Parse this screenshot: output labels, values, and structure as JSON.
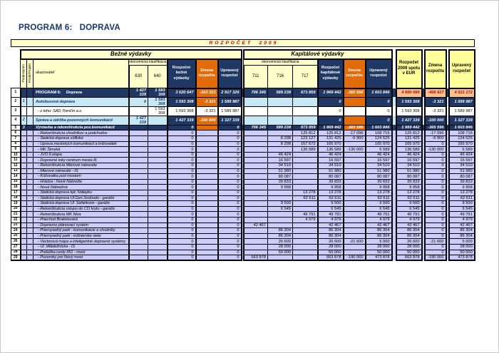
{
  "title": "PROGRAM 6:   DOPRAVA",
  "banner": "R O Z P O Č E T     2 0 0 9",
  "header": {
    "bezne": "Bežné výdavky",
    "kapitalove": "Kapitálové výdavky",
    "ekonomicka": "ekonomická klasifikácia",
    "podprogram": "Podprogram",
    "prvok": "Prvok/Projekt",
    "ukazovatel": "ukazovateľ",
    "col630": "630",
    "col640": "640",
    "col711": "711",
    "col716": "716",
    "col717": "717",
    "rozpocet_bezne": "Rozpočet bežné výdavky",
    "zmena": "Zmena rozpočtu",
    "upraveny": "Upravený rozpočet",
    "rozpocet_kapitalove": "Rozpočet kapitálové výdavky",
    "rozpocet_spolu_eur": "Rozpočet 2009 spolu v EUR"
  },
  "colors": {
    "navy": "#1F3864",
    "orange": "#E36C0A",
    "pale_yellow": "#FFFFCC",
    "yellow": "#FFFF99",
    "salmon": "#FAC090",
    "cyan": "#C6E7F4",
    "lavender": "#CCCCFF",
    "dark_red": "#C00000"
  },
  "rows": [
    {
      "num": "1",
      "pod": "",
      "style": "total",
      "name": "PROGRAM 6:     Doprava",
      "cells": [
        "1 427 339",
        "1 593 308",
        "3 020 647",
        "-103 321",
        "2 917 326",
        "706 345",
        "589 238",
        "673 859",
        "1 969 442",
        "-365 596",
        "1 603 846",
        "4 990 089",
        "-468 917",
        "4 521 172"
      ]
    },
    {
      "num": "2",
      "pod": "1",
      "style": "sub",
      "name": "Autobusová doprava",
      "cells": [
        "0",
        "1 593 308",
        "1 593 308",
        "-3 321",
        "1 589 987",
        "",
        "",
        "",
        "0",
        "",
        "0",
        "1 593 308",
        "-3 321",
        "1 589 987"
      ]
    },
    {
      "num": "3",
      "pod": "",
      "style": "plain",
      "name": "- z toho: SAD Trenčín a.s.",
      "cells": [
        "",
        "1 593 308",
        "1 593 308",
        "-3 321",
        "1 589 987",
        "",
        "",
        "",
        "0",
        "",
        "0",
        "1 593 308",
        "-3 321",
        "1 589 987"
      ]
    },
    {
      "num": "4",
      "pod": "2",
      "style": "sub",
      "name": "Správa a údržba pozemných komunikácií",
      "cells": [
        "1 427 339",
        "",
        "1 427 339",
        "-100 000",
        "1 327 339",
        "",
        "",
        "",
        "0",
        "",
        "0",
        "1 427 339",
        "-100 000",
        "1 327 339"
      ]
    },
    {
      "num": "5",
      "pod": "3",
      "style": "total2",
      "name": "Výstavba a rekonštrukcia poz.komunikácií",
      "cells": [
        "",
        "",
        "0",
        "",
        "0",
        "706 345",
        "589 238",
        "673 859",
        "1 969 442",
        "-365 596",
        "1 603 846",
        "1 969 442",
        "-365 596",
        "1 603 846"
      ]
    },
    {
      "num": "6",
      "pod": "",
      "style": "detail",
      "name": "- Rekonštrukcia chodníkov a podchodov",
      "cells": [
        "",
        "",
        "0",
        "",
        "0",
        "",
        "",
        "125 812",
        "125 812",
        "-17 096",
        "108 716",
        "125 812",
        "-17 096",
        "108 716"
      ]
    },
    {
      "num": "7",
      "pod": "",
      "style": "detail",
      "name": "- Statická doprava sídliská",
      "cells": [
        "",
        "",
        "0",
        "",
        "0",
        "",
        "8 298",
        "123 127",
        "131 425",
        "-6 900",
        "124 525",
        "131 425",
        "-6 900",
        "124 525"
      ]
    },
    {
      "num": "8",
      "pod": "",
      "style": "detail",
      "name": "- Úprava mestských komunikácií a križovatiek",
      "cells": [
        "",
        "",
        "0",
        "",
        "0",
        "",
        "8 298",
        "157 672",
        "165 970",
        "",
        "165 970",
        "165 970",
        "0",
        "165 970"
      ]
    },
    {
      "num": "9",
      "pod": "",
      "style": "detail",
      "name": "- MK Šimská",
      "cells": [
        "",
        "",
        "0",
        "",
        "0",
        "",
        "",
        "136 589",
        "136 589",
        "-130 000",
        "6 589",
        "136 589",
        "-130 000",
        "6 589"
      ]
    },
    {
      "num": "10",
      "pod": "",
      "style": "detail",
      "name": "- JVO II.etapa",
      "cells": [
        "",
        "",
        "0",
        "",
        "0",
        "",
        "46 424",
        "",
        "46 424",
        "",
        "46 424",
        "46 424",
        "0",
        "46 424"
      ]
    },
    {
      "num": "11",
      "pod": "",
      "style": "detail",
      "name": "- Dopravné toky centrum mesta III.",
      "cells": [
        "",
        "",
        "0",
        "",
        "0",
        "",
        "16 597",
        "",
        "16 597",
        "",
        "16 597",
        "16 597",
        "0",
        "16 597"
      ]
    },
    {
      "num": "12",
      "pod": "",
      "style": "detail",
      "name": "- Rekonštrukcia Mierové námestie",
      "cells": [
        "",
        "",
        "0",
        "",
        "0",
        "",
        "34 510",
        "",
        "34 510",
        "",
        "34 510",
        "34 510",
        "0",
        "34 510"
      ]
    },
    {
      "num": "13",
      "pod": "",
      "style": "detail",
      "name": "- Mierové námestie - IS",
      "cells": [
        "",
        "",
        "0",
        "",
        "0",
        "",
        "51 980",
        "",
        "51 980",
        "",
        "51 980",
        "51 980",
        "0",
        "51 980"
      ]
    },
    {
      "num": "14",
      "pod": "",
      "style": "detail",
      "name": "- Križovatka pod mostom",
      "cells": [
        "",
        "",
        "0",
        "",
        "0",
        "",
        "80 087",
        "",
        "80 087",
        "",
        "80 087",
        "80 087",
        "0",
        "80 087"
      ]
    },
    {
      "num": "15",
      "pod": "",
      "style": "detail",
      "name": "- Hrádza - Nové Nábrežie",
      "cells": [
        "",
        "",
        "0",
        "",
        "0",
        "",
        "39 833",
        "",
        "39 833",
        "",
        "39 833",
        "39 833",
        "0",
        "39 833"
      ]
    },
    {
      "num": "16",
      "pod": "",
      "style": "detail",
      "name": "- Nová Nábrežná",
      "cells": [
        "",
        "",
        "0",
        "",
        "0",
        "",
        "9 958",
        "",
        "9 958",
        "",
        "9 958",
        "9 958",
        "0",
        "9 958"
      ]
    },
    {
      "num": "17",
      "pod": "",
      "style": "detail",
      "name": "- Statická doprava kpt. Nálepku",
      "cells": [
        "",
        "",
        "0",
        "",
        "0",
        "",
        "",
        "13 278",
        "13 278",
        "",
        "13 278",
        "13 278",
        "0",
        "13 278"
      ]
    },
    {
      "num": "18",
      "pod": "",
      "style": "detail",
      "name": "- Statická doprava Ul.Gen.Svobodu - garáže",
      "cells": [
        "",
        "",
        "0",
        "",
        "0",
        "",
        "",
        "62 611",
        "62 611",
        "",
        "62 611",
        "62 611",
        "0",
        "62 611"
      ]
    },
    {
      "num": "19",
      "pod": "",
      "style": "detail",
      "name": "- Statická doprava Ul. Šafárikove - garáže",
      "cells": [
        "",
        "",
        "0",
        "",
        "0",
        "",
        "9 500",
        "",
        "9 500",
        "",
        "9 500",
        "9 500",
        "0",
        "9 500"
      ]
    },
    {
      "num": "20",
      "pod": "",
      "style": "detail",
      "name": "- Rekonštrukcia vstupu do CO krytu - garáže",
      "cells": [
        "",
        "",
        "0",
        "",
        "0",
        "",
        "6 545",
        "",
        "6 545",
        "",
        "6 545",
        "6 545",
        "0",
        "6 545"
      ]
    },
    {
      "num": "21",
      "pod": "",
      "style": "detail",
      "name": "- Rekonštrukcia MK Niva",
      "cells": [
        "",
        "",
        "0",
        "",
        "0",
        "",
        "",
        "49 791",
        "49 791",
        "",
        "49 791",
        "49 791",
        "0",
        "49 791"
      ]
    },
    {
      "num": "22",
      "pod": "",
      "style": "detail",
      "name": "- Priechod Bratislavská",
      "cells": [
        "",
        "",
        "0",
        "",
        "0",
        "",
        "",
        "4 979",
        "4 979",
        "",
        "4 979",
        "4 979",
        "0",
        "4 979"
      ]
    },
    {
      "num": "23",
      "pod": "",
      "style": "detail",
      "name": "- Dopravno plánovací systém",
      "cells": [
        "",
        "",
        "0",
        "",
        "0",
        "42 467",
        "",
        "",
        "42 467",
        "",
        "42 467",
        "42 467",
        "0",
        "42 467"
      ]
    },
    {
      "num": "24",
      "pod": "",
      "style": "detail",
      "name": "- Priemyselný park - komunikácie a chodníky",
      "cells": [
        "",
        "",
        "0",
        "",
        "0",
        "",
        "86 304",
        "",
        "86 304",
        "",
        "86 304",
        "86 304",
        "0",
        "86 304"
      ]
    },
    {
      "num": "25",
      "pod": "",
      "style": "detail",
      "name": "- Priemyselný park - inžinierske siete",
      "cells": [
        "",
        "",
        "0",
        "",
        "0",
        "",
        "86 304",
        "",
        "86 304",
        "",
        "86 304",
        "86 304",
        "0",
        "86 304"
      ]
    },
    {
      "num": "26",
      "pod": "",
      "style": "detail",
      "name": "- Vectorová mapa a inteligentné dopravné systémy",
      "cells": [
        "",
        "",
        "0",
        "",
        "0",
        "",
        "26 600",
        "",
        "26 600",
        "-21 600",
        "5 000",
        "26 600",
        "-21 600",
        "5 000"
      ]
    },
    {
      "num": "27",
      "pod": "",
      "style": "detail",
      "name": "- Ul. Mládežnícka - IS",
      "cells": [
        "",
        "",
        "0",
        "",
        "0",
        "",
        "28 000",
        "",
        "28 000",
        "",
        "28 000",
        "28 000",
        "0",
        "28 000"
      ]
    },
    {
      "num": "28",
      "pod": "",
      "style": "detail",
      "name": "- Preložka cesty I/61 - most",
      "cells": [
        "",
        "",
        "0",
        "",
        "0",
        "",
        "50 000",
        "",
        "50 000",
        "",
        "50 000",
        "50 000",
        "0",
        "50 000"
      ]
    },
    {
      "num": "29",
      "pod": "",
      "style": "detail",
      "name": "- Pozemky pre Nový most",
      "cells": [
        "",
        "",
        "0",
        "",
        "0",
        "663 878",
        "",
        "",
        "663 878",
        "-190 000",
        "473 878",
        "663 878",
        "-190 000",
        "473 878"
      ]
    }
  ]
}
